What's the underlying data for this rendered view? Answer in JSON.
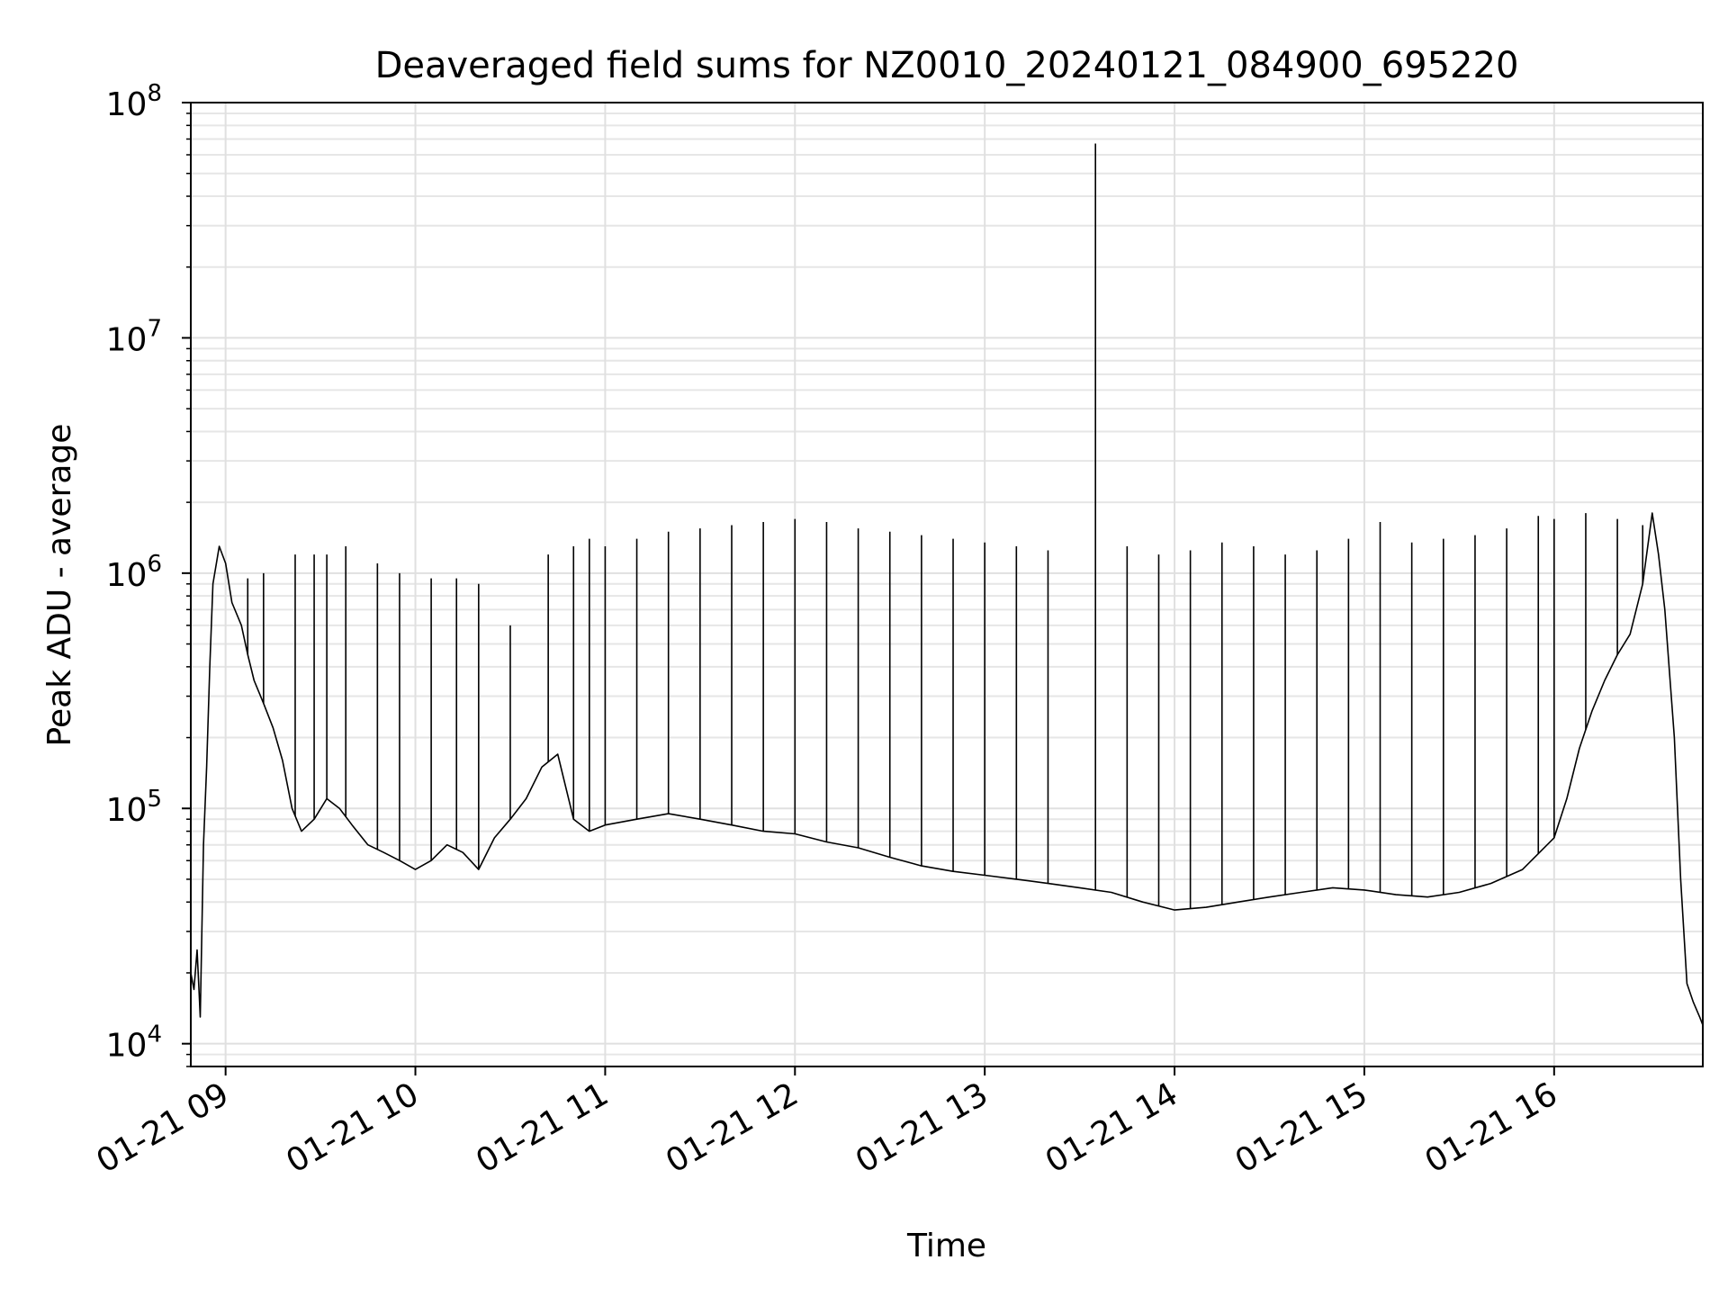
{
  "chart_data": {
    "type": "line",
    "title": "Deaveraged field sums for NZ0010_20240121_084900_695220",
    "xlabel": "Time",
    "ylabel": "Peak ADU - average",
    "yscale": "log",
    "ylim": [
      8000,
      100000000
    ],
    "xlim": [
      "2024-01-21 08:49:00",
      "2024-01-21 16:47:00"
    ],
    "grid": true,
    "x_ticks": [
      {
        "label": "01-21 09",
        "value": "2024-01-21 09:00"
      },
      {
        "label": "01-21 10",
        "value": "2024-01-21 10:00"
      },
      {
        "label": "01-21 11",
        "value": "2024-01-21 11:00"
      },
      {
        "label": "01-21 12",
        "value": "2024-01-21 12:00"
      },
      {
        "label": "01-21 13",
        "value": "2024-01-21 13:00"
      },
      {
        "label": "01-21 14",
        "value": "2024-01-21 14:00"
      },
      {
        "label": "01-21 15",
        "value": "2024-01-21 15:00"
      },
      {
        "label": "01-21 16",
        "value": "2024-01-21 16:00"
      }
    ],
    "y_ticks": [
      {
        "base": "10",
        "exp": "4",
        "value": 10000
      },
      {
        "base": "10",
        "exp": "5",
        "value": 100000
      },
      {
        "base": "10",
        "exp": "6",
        "value": 1000000
      },
      {
        "base": "10",
        "exp": "7",
        "value": 10000000
      },
      {
        "base": "10",
        "exp": "8",
        "value": 100000000
      }
    ],
    "series": [
      {
        "color": "#000000",
        "points": [
          [
            "08:49",
            20000
          ],
          [
            "08:50",
            17000
          ],
          [
            "08:51",
            25000
          ],
          [
            "08:52",
            13000
          ],
          [
            "08:53",
            70000
          ],
          [
            "08:54",
            150000
          ],
          [
            "08:55",
            400000
          ],
          [
            "08:56",
            900000
          ],
          [
            "08:58",
            1300000
          ],
          [
            "09:00",
            1100000
          ],
          [
            "09:02",
            750000
          ],
          [
            "09:05",
            600000
          ],
          [
            "09:07",
            450000
          ],
          [
            "09:09",
            350000
          ],
          [
            "09:12",
            280000
          ],
          [
            "09:15",
            220000
          ],
          [
            "09:18",
            160000
          ],
          [
            "09:21",
            100000
          ],
          [
            "09:24",
            80000
          ],
          [
            "09:28",
            90000
          ],
          [
            "09:32",
            110000
          ],
          [
            "09:36",
            100000
          ],
          [
            "09:40",
            85000
          ],
          [
            "09:45",
            70000
          ],
          [
            "09:50",
            65000
          ],
          [
            "09:55",
            60000
          ],
          [
            "10:00",
            55000
          ],
          [
            "10:05",
            60000
          ],
          [
            "10:10",
            70000
          ],
          [
            "10:15",
            65000
          ],
          [
            "10:20",
            55000
          ],
          [
            "10:25",
            75000
          ],
          [
            "10:30",
            90000
          ],
          [
            "10:35",
            110000
          ],
          [
            "10:40",
            150000
          ],
          [
            "10:45",
            170000
          ],
          [
            "10:50",
            90000
          ],
          [
            "10:55",
            80000
          ],
          [
            "11:00",
            85000
          ],
          [
            "11:10",
            90000
          ],
          [
            "11:20",
            95000
          ],
          [
            "11:30",
            90000
          ],
          [
            "11:40",
            85000
          ],
          [
            "11:50",
            80000
          ],
          [
            "12:00",
            78000
          ],
          [
            "12:10",
            72000
          ],
          [
            "12:20",
            68000
          ],
          [
            "12:30",
            62000
          ],
          [
            "12:40",
            57000
          ],
          [
            "12:50",
            54000
          ],
          [
            "13:00",
            52000
          ],
          [
            "13:10",
            50000
          ],
          [
            "13:20",
            48000
          ],
          [
            "13:30",
            46000
          ],
          [
            "13:40",
            44000
          ],
          [
            "13:50",
            40000
          ],
          [
            "14:00",
            37000
          ],
          [
            "14:10",
            38000
          ],
          [
            "14:20",
            40000
          ],
          [
            "14:30",
            42000
          ],
          [
            "14:40",
            44000
          ],
          [
            "14:50",
            46000
          ],
          [
            "15:00",
            45000
          ],
          [
            "15:10",
            43000
          ],
          [
            "15:20",
            42000
          ],
          [
            "15:30",
            44000
          ],
          [
            "15:40",
            48000
          ],
          [
            "15:50",
            55000
          ],
          [
            "16:00",
            75000
          ],
          [
            "16:04",
            110000
          ],
          [
            "16:08",
            180000
          ],
          [
            "16:12",
            260000
          ],
          [
            "16:16",
            350000
          ],
          [
            "16:20",
            450000
          ],
          [
            "16:24",
            550000
          ],
          [
            "16:28",
            900000
          ],
          [
            "16:31",
            1800000
          ],
          [
            "16:33",
            1200000
          ],
          [
            "16:35",
            700000
          ],
          [
            "16:38",
            200000
          ],
          [
            "16:40",
            50000
          ],
          [
            "16:42",
            18000
          ],
          [
            "16:44",
            15000
          ],
          [
            "16:46",
            13000
          ],
          [
            "16:47",
            12000
          ]
        ],
        "spikes": [
          {
            "time": "09:07",
            "value": 950000
          },
          {
            "time": "09:12",
            "value": 1000000
          },
          {
            "time": "09:22",
            "value": 1200000
          },
          {
            "time": "09:28",
            "value": 1200000
          },
          {
            "time": "09:32",
            "value": 1200000
          },
          {
            "time": "09:38",
            "value": 1300000
          },
          {
            "time": "09:48",
            "value": 1100000
          },
          {
            "time": "09:55",
            "value": 1000000
          },
          {
            "time": "10:05",
            "value": 950000
          },
          {
            "time": "10:13",
            "value": 950000
          },
          {
            "time": "10:20",
            "value": 900000
          },
          {
            "time": "10:30",
            "value": 600000
          },
          {
            "time": "10:42",
            "value": 1200000
          },
          {
            "time": "10:50",
            "value": 1300000
          },
          {
            "time": "10:55",
            "value": 1400000
          },
          {
            "time": "11:00",
            "value": 1300000
          },
          {
            "time": "11:10",
            "value": 1400000
          },
          {
            "time": "11:20",
            "value": 1500000
          },
          {
            "time": "11:30",
            "value": 1550000
          },
          {
            "time": "11:40",
            "value": 1600000
          },
          {
            "time": "11:50",
            "value": 1650000
          },
          {
            "time": "12:00",
            "value": 1700000
          },
          {
            "time": "12:10",
            "value": 1650000
          },
          {
            "time": "12:20",
            "value": 1550000
          },
          {
            "time": "12:30",
            "value": 1500000
          },
          {
            "time": "12:40",
            "value": 1450000
          },
          {
            "time": "12:50",
            "value": 1400000
          },
          {
            "time": "13:00",
            "value": 1350000
          },
          {
            "time": "13:10",
            "value": 1300000
          },
          {
            "time": "13:20",
            "value": 1250000
          },
          {
            "time": "13:35",
            "value": 67000000
          },
          {
            "time": "13:45",
            "value": 1300000
          },
          {
            "time": "13:55",
            "value": 1200000
          },
          {
            "time": "14:05",
            "value": 1250000
          },
          {
            "time": "14:15",
            "value": 1350000
          },
          {
            "time": "14:25",
            "value": 1300000
          },
          {
            "time": "14:35",
            "value": 1200000
          },
          {
            "time": "14:45",
            "value": 1250000
          },
          {
            "time": "14:55",
            "value": 1400000
          },
          {
            "time": "15:05",
            "value": 1650000
          },
          {
            "time": "15:15",
            "value": 1350000
          },
          {
            "time": "15:25",
            "value": 1400000
          },
          {
            "time": "15:35",
            "value": 1450000
          },
          {
            "time": "15:45",
            "value": 1550000
          },
          {
            "time": "15:55",
            "value": 1750000
          },
          {
            "time": "16:00",
            "value": 1700000
          },
          {
            "time": "16:10",
            "value": 1800000
          },
          {
            "time": "16:20",
            "value": 1700000
          },
          {
            "time": "16:28",
            "value": 1600000
          }
        ]
      }
    ]
  }
}
